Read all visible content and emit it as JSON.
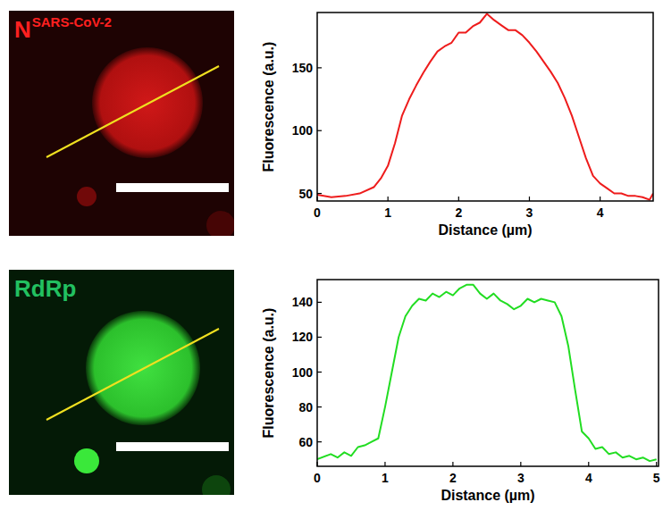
{
  "chart_data": [
    {
      "type": "line",
      "xlabel": "Distance (µm)",
      "ylabel": "Fluorescence (a.u.)",
      "color": "#ee1c1c",
      "xlim": [
        0,
        4.75
      ],
      "xticks": [
        0,
        1,
        2,
        3,
        4
      ],
      "ylim": [
        44,
        194
      ],
      "yticks": [
        50,
        100,
        150
      ],
      "x": [
        0,
        0.2,
        0.4,
        0.6,
        0.8,
        0.9,
        1.0,
        1.1,
        1.2,
        1.3,
        1.4,
        1.5,
        1.6,
        1.7,
        1.8,
        1.9,
        2.0,
        2.1,
        2.2,
        2.3,
        2.4,
        2.5,
        2.6,
        2.7,
        2.8,
        2.9,
        3.0,
        3.1,
        3.2,
        3.3,
        3.4,
        3.5,
        3.6,
        3.7,
        3.8,
        3.9,
        4.0,
        4.1,
        4.2,
        4.3,
        4.4,
        4.5,
        4.6,
        4.7,
        4.75
      ],
      "values": [
        49,
        47,
        48,
        50,
        55,
        62,
        72,
        90,
        112,
        125,
        136,
        146,
        155,
        163,
        167,
        170,
        178,
        178,
        183,
        186,
        193,
        188,
        184,
        180,
        180,
        176,
        170,
        163,
        155,
        147,
        138,
        126,
        112,
        95,
        78,
        64,
        58,
        54,
        50,
        50,
        48,
        48,
        47,
        45,
        50
      ]
    },
    {
      "type": "line",
      "xlabel": "Distance (µm)",
      "ylabel": "Fluorescence (a.u.)",
      "color": "#22dd22",
      "xlim": [
        0,
        5.03
      ],
      "xticks": [
        0,
        1,
        2,
        3,
        4,
        5
      ],
      "ylim": [
        46,
        153
      ],
      "yticks": [
        60,
        80,
        100,
        120,
        140
      ],
      "x": [
        0,
        0.2,
        0.3,
        0.4,
        0.5,
        0.6,
        0.7,
        0.8,
        0.9,
        1.0,
        1.1,
        1.2,
        1.3,
        1.4,
        1.5,
        1.6,
        1.7,
        1.8,
        1.9,
        2.0,
        2.1,
        2.2,
        2.3,
        2.4,
        2.5,
        2.6,
        2.7,
        2.8,
        2.9,
        3.0,
        3.1,
        3.2,
        3.3,
        3.4,
        3.5,
        3.6,
        3.7,
        3.8,
        3.9,
        4.0,
        4.1,
        4.2,
        4.3,
        4.4,
        4.5,
        4.6,
        4.7,
        4.8,
        4.9,
        5.0
      ],
      "values": [
        50,
        53,
        51,
        54,
        52,
        57,
        58,
        60,
        62,
        80,
        100,
        120,
        132,
        138,
        142,
        141,
        145,
        143,
        146,
        144,
        148,
        150,
        150,
        145,
        142,
        145,
        141,
        139,
        136,
        138,
        142,
        140,
        142,
        141,
        140,
        132,
        115,
        90,
        66,
        62,
        56,
        57,
        53,
        54,
        51,
        52,
        50,
        51,
        49,
        50
      ]
    }
  ],
  "images": [
    {
      "label": "N",
      "superscript": "SARS-CoV-2",
      "color": "#ff2020"
    },
    {
      "label": "RdRp",
      "color": "#22c060"
    }
  ]
}
